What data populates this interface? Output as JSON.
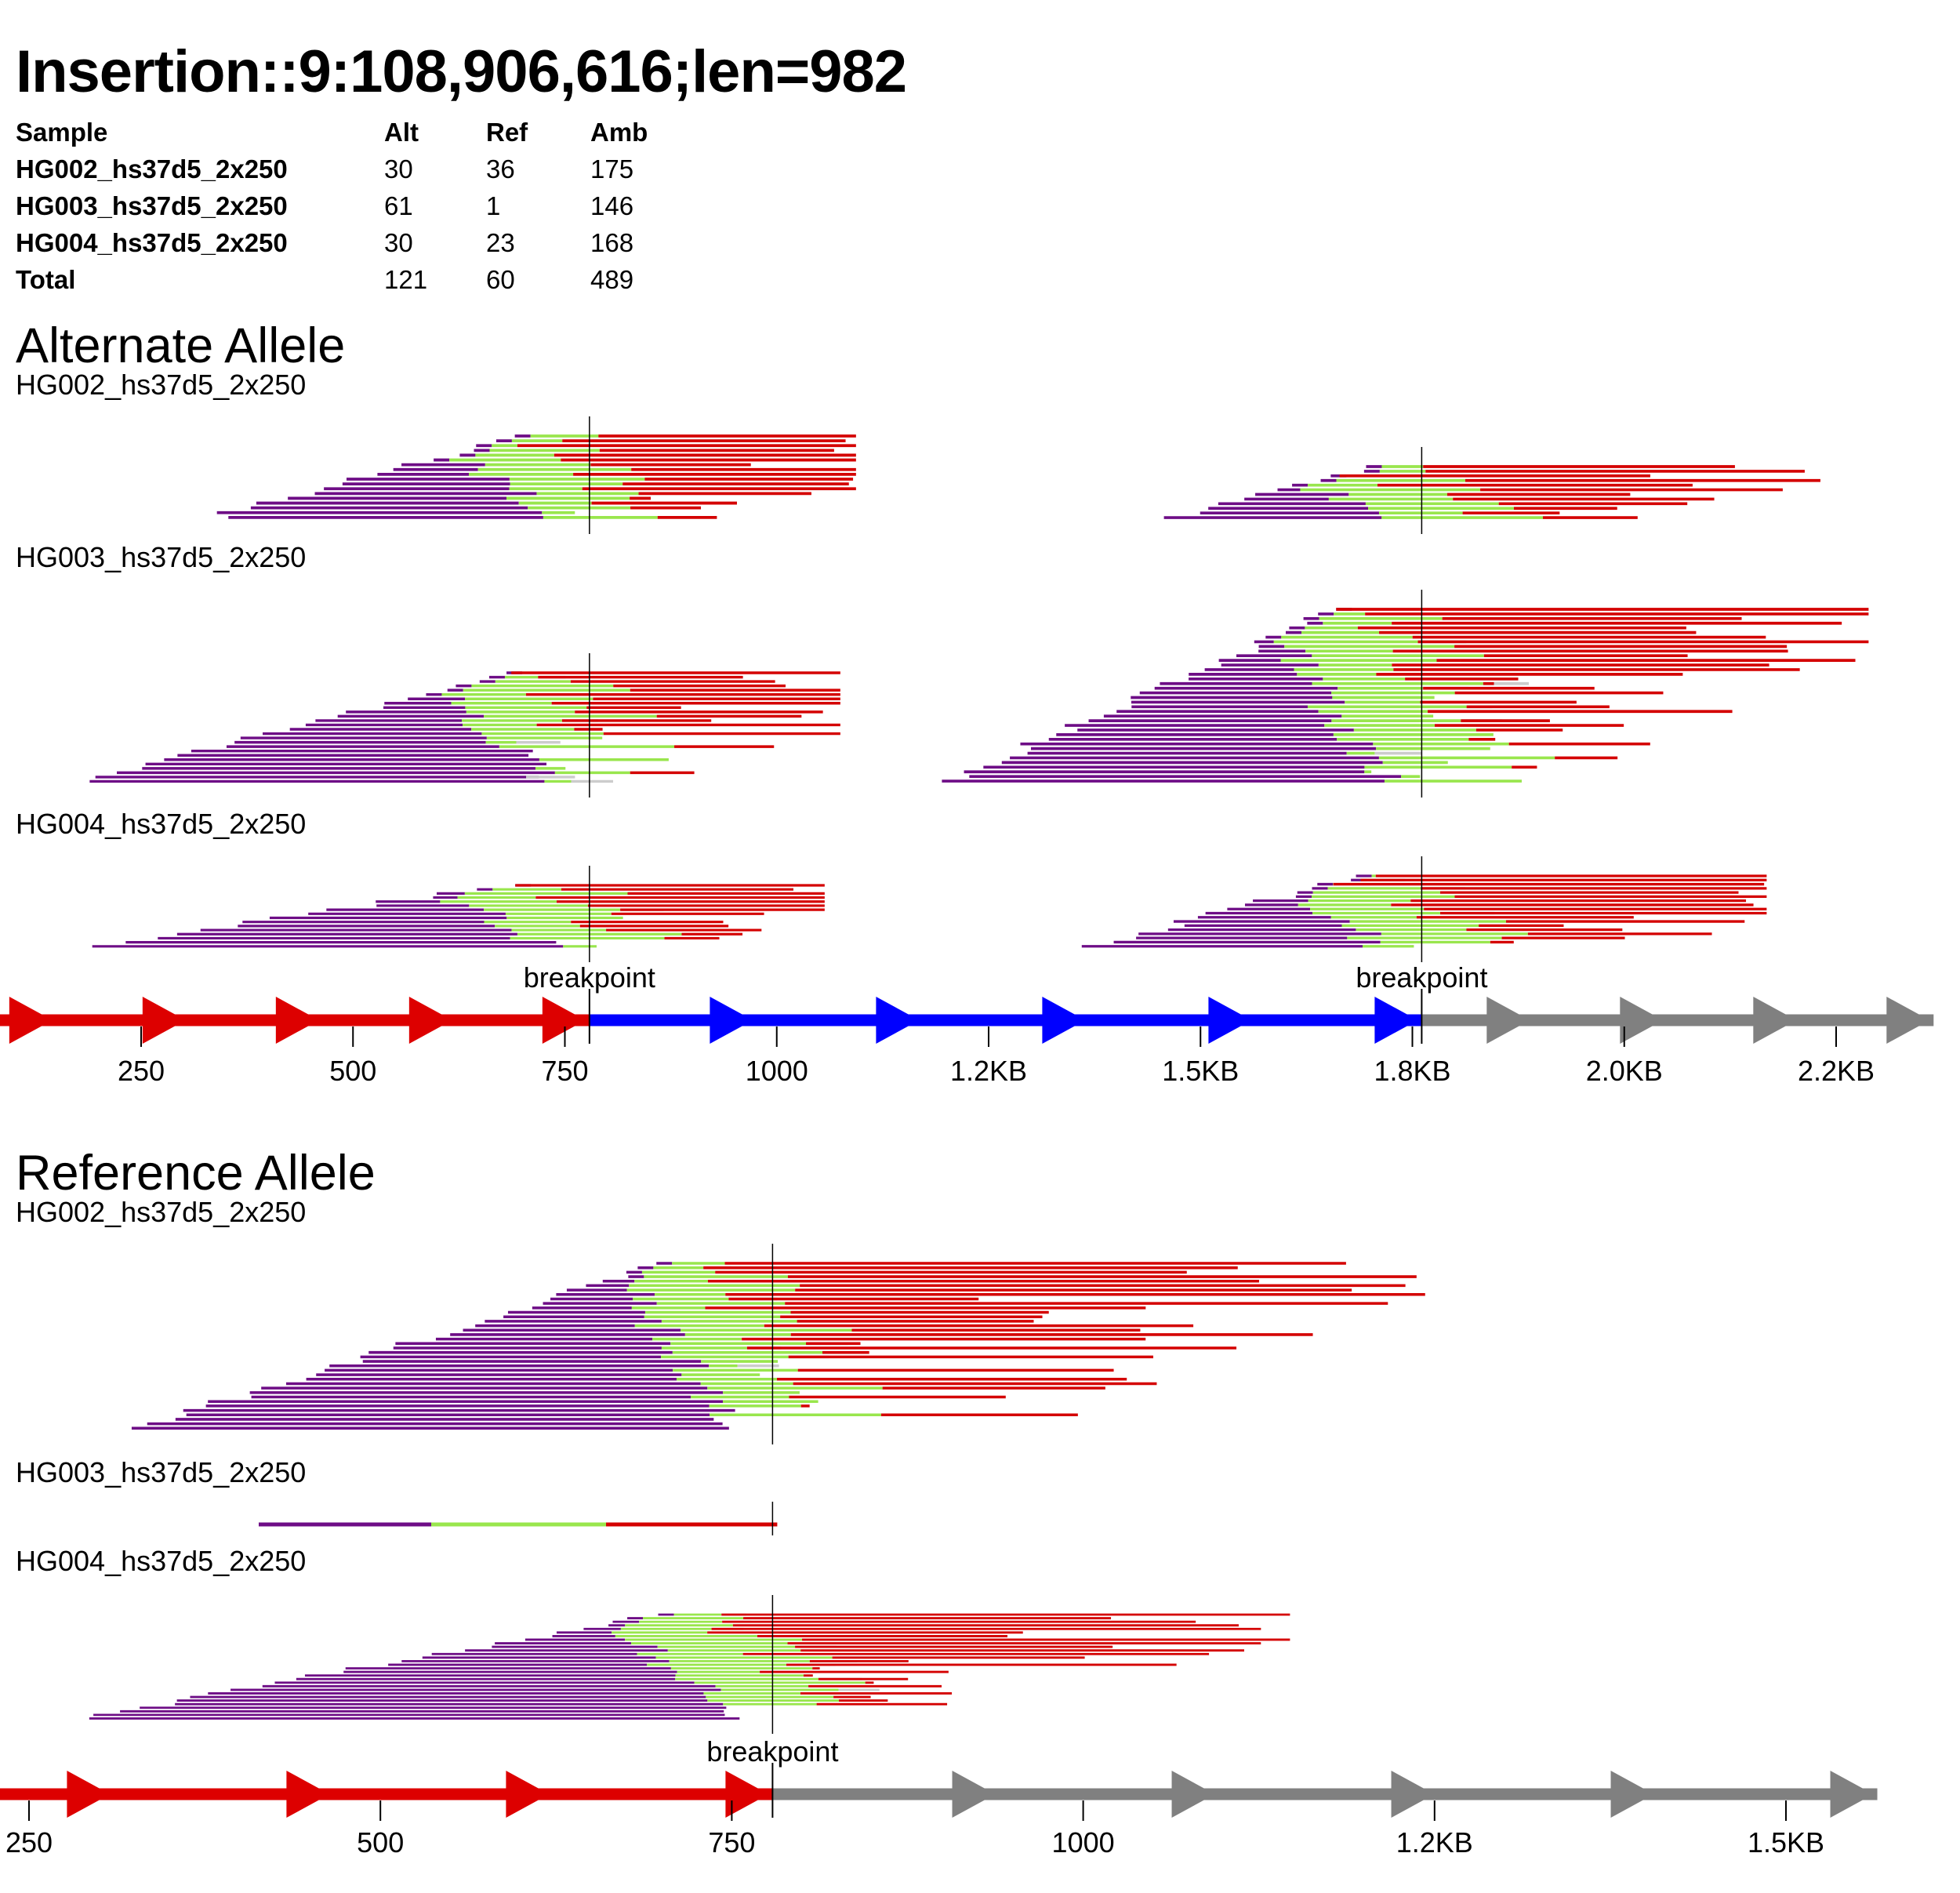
{
  "title": "Insertion::9:108,906,616;len=982",
  "table": {
    "headers": [
      "Sample",
      "Alt",
      "Ref",
      "Amb"
    ],
    "rows": [
      [
        "HG002_hs37d5_2x250",
        "30",
        "36",
        "175"
      ],
      [
        "HG003_hs37d5_2x250",
        "61",
        "1",
        "146"
      ],
      [
        "HG004_hs37d5_2x250",
        "30",
        "23",
        "168"
      ],
      [
        "Total",
        "121",
        "60",
        "489"
      ]
    ]
  },
  "alt": {
    "title": "Alternate Allele",
    "samples": [
      "HG002_hs37d5_2x250",
      "HG003_hs37d5_2x250",
      "HG004_hs37d5_2x250"
    ],
    "breakpoint_label": "breakpoint",
    "tick_labels": [
      "250",
      "500",
      "750",
      "1000",
      "1.2KB",
      "1.5KB",
      "1.8KB",
      "2.0KB",
      "2.2KB"
    ],
    "tick_values": [
      250,
      500,
      750,
      1000,
      1250,
      1500,
      1750,
      2000,
      2250
    ],
    "breakpoints": [
      779,
      1761
    ],
    "segments": [
      {
        "from": 0,
        "to": 779,
        "color": "red"
      },
      {
        "from": 779,
        "to": 1761,
        "color": "blue"
      },
      {
        "from": 1761,
        "to": 2365,
        "color": "gray"
      }
    ]
  },
  "ref": {
    "title": "Reference Allele",
    "samples": [
      "HG002_hs37d5_2x250",
      "HG003_hs37d5_2x250",
      "HG004_hs37d5_2x250"
    ],
    "breakpoint_label": "breakpoint",
    "tick_labels": [
      "250",
      "500",
      "750",
      "1000",
      "1.2KB",
      "1.5KB"
    ],
    "tick_values": [
      250,
      500,
      750,
      1000,
      1250,
      1500
    ],
    "breakpoints": [
      779
    ],
    "segments": [
      {
        "from": 0,
        "to": 779,
        "color": "red"
      },
      {
        "from": 779,
        "to": 1565,
        "color": "gray"
      }
    ]
  },
  "colors": {
    "red": "#dd0000",
    "blue": "#0000ff",
    "gray": "#808080",
    "purple": "#6e0d86",
    "green": "#99e64d",
    "lightgray": "#cccccc",
    "read_red": "#d40000"
  }
}
